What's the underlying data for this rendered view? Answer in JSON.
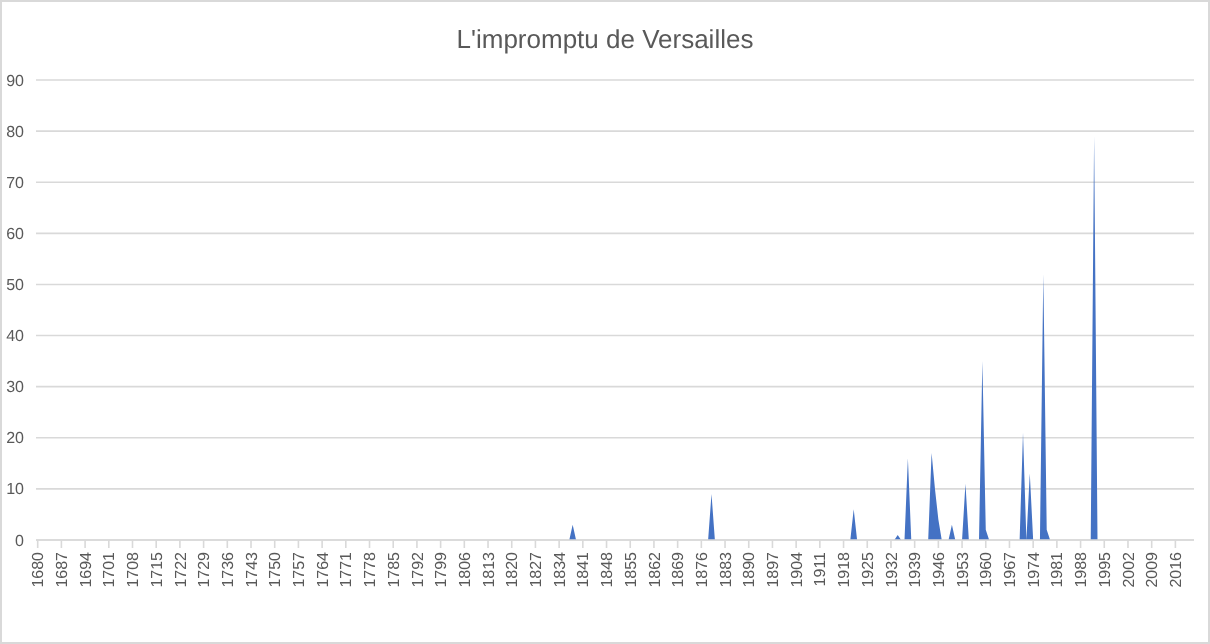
{
  "chart_data": {
    "type": "area",
    "title": "L'impromptu de Versailles",
    "x": [
      1680,
      1837,
      1838,
      1839,
      1878,
      1879,
      1880,
      1920,
      1921,
      1922,
      1933,
      1934,
      1935,
      1936,
      1937,
      1938,
      1943,
      1944,
      1945,
      1946,
      1947,
      1949,
      1950,
      1951,
      1953,
      1954,
      1955,
      1958,
      1959,
      1960,
      1961,
      1970,
      1971,
      1972,
      1973,
      1974,
      1976,
      1977,
      1978,
      1979,
      1991,
      1992,
      1993,
      2021
    ],
    "values": [
      0,
      0,
      3,
      0,
      0,
      9,
      0,
      0,
      6,
      0,
      0,
      1,
      0,
      0,
      16,
      0,
      0,
      17,
      10,
      4,
      0,
      0,
      3,
      0,
      0,
      11,
      0,
      0,
      35,
      2,
      0,
      0,
      21,
      0,
      13,
      0,
      0,
      52,
      2,
      0,
      0,
      79,
      0,
      0
    ],
    "color": "#4472c4",
    "xlim": [
      1679.5,
      2021.5
    ],
    "xticks": [
      1680,
      1687,
      1694,
      1701,
      1708,
      1715,
      1722,
      1729,
      1736,
      1743,
      1750,
      1757,
      1764,
      1771,
      1778,
      1785,
      1792,
      1799,
      1806,
      1813,
      1820,
      1827,
      1834,
      1841,
      1848,
      1855,
      1862,
      1869,
      1876,
      1883,
      1890,
      1897,
      1904,
      1911,
      1918,
      1925,
      1932,
      1939,
      1946,
      1953,
      1960,
      1967,
      1974,
      1981,
      1988,
      1995,
      2002,
      2009,
      2016
    ],
    "ylim": [
      0,
      90
    ],
    "yticks": [
      0,
      10,
      20,
      30,
      40,
      50,
      60,
      70,
      80,
      90
    ],
    "grid": "y"
  }
}
